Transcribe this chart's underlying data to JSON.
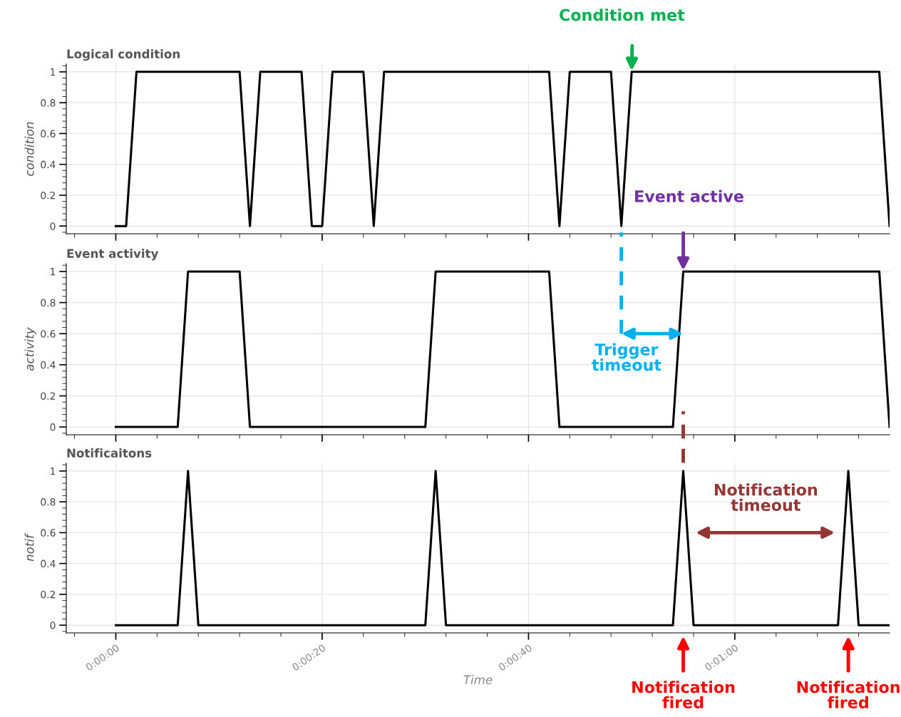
{
  "chart_data": [
    {
      "type": "line",
      "title": "Logical condition",
      "ylabel": "condition",
      "series": [
        {
          "color": "#000000",
          "x": [
            0,
            1,
            2,
            12,
            13,
            14,
            18,
            19,
            20,
            21,
            24,
            25,
            26,
            42,
            43,
            44,
            48,
            49,
            50,
            74,
            75
          ],
          "values": [
            0,
            0,
            1,
            1,
            0,
            1,
            1,
            0,
            0,
            1,
            1,
            0,
            1,
            1,
            0,
            1,
            1,
            0,
            1,
            1,
            0
          ]
        }
      ],
      "xlim": [
        -4.8,
        75
      ],
      "xticks": [
        {
          "value": 0,
          "label": null
        },
        {
          "value": 20,
          "label": null
        },
        {
          "value": 40,
          "label": null
        },
        {
          "value": 60,
          "label": null
        }
      ],
      "ylim": [
        -0.05,
        1.05
      ],
      "yticks": [
        0,
        0.2,
        0.4,
        0.6,
        0.8,
        1
      ],
      "tick_labels": "y",
      "grid": true,
      "legend": false,
      "line_style": "solid",
      "annotations": [
        "Condition met"
      ]
    },
    {
      "type": "line",
      "title": "Event activity",
      "ylabel": "activity",
      "series": [
        {
          "color": "#000000",
          "x": [
            0,
            6,
            7,
            12,
            13,
            30,
            31,
            42,
            43,
            54,
            55,
            74,
            75
          ],
          "values": [
            0,
            0,
            1,
            1,
            0,
            0,
            1,
            1,
            0,
            0,
            1,
            1,
            0
          ]
        }
      ],
      "xlim": [
        -4.8,
        75
      ],
      "xticks": [
        {
          "value": 0,
          "label": null
        },
        {
          "value": 20,
          "label": null
        },
        {
          "value": 40,
          "label": null
        },
        {
          "value": 60,
          "label": null
        }
      ],
      "ylim": [
        -0.05,
        1.05
      ],
      "yticks": [
        0,
        0.2,
        0.4,
        0.6,
        0.8,
        1
      ],
      "tick_labels": "y",
      "grid": true,
      "legend": false,
      "line_style": "solid",
      "ref_lines": [
        {
          "axis": "x",
          "value": 49,
          "color": "#00b0f0",
          "line_style": "dashed"
        },
        {
          "axis": "x",
          "value": 55,
          "color": "#943634",
          "line_style": "dashed"
        }
      ],
      "annotations": [
        "Event active",
        "Trigger timeout"
      ]
    },
    {
      "type": "line",
      "title": "Notificaitons",
      "ylabel": "notif",
      "xlabel": "Time",
      "series": [
        {
          "color": "#000000",
          "x": [
            0,
            6,
            7,
            8,
            30,
            31,
            32,
            54,
            55,
            56,
            70,
            71,
            72,
            75
          ],
          "values": [
            0,
            0,
            1,
            0,
            0,
            1,
            0,
            0,
            1,
            0,
            0,
            1,
            0,
            0
          ]
        }
      ],
      "xlim": [
        -4.8,
        75
      ],
      "xticks": [
        {
          "value": 0,
          "label": "0:00:00"
        },
        {
          "value": 20,
          "label": "0:00:20"
        },
        {
          "value": 40,
          "label": "0:00:40"
        },
        {
          "value": 60,
          "label": "0:01:00"
        }
      ],
      "ylim": [
        -0.05,
        1.05
      ],
      "yticks": [
        0,
        0.2,
        0.4,
        0.6,
        0.8,
        1
      ],
      "grid": true,
      "legend": false,
      "line_style": "solid",
      "annotations": [
        "Notification timeout",
        "Notification fired",
        "Notification fired"
      ]
    }
  ]
}
